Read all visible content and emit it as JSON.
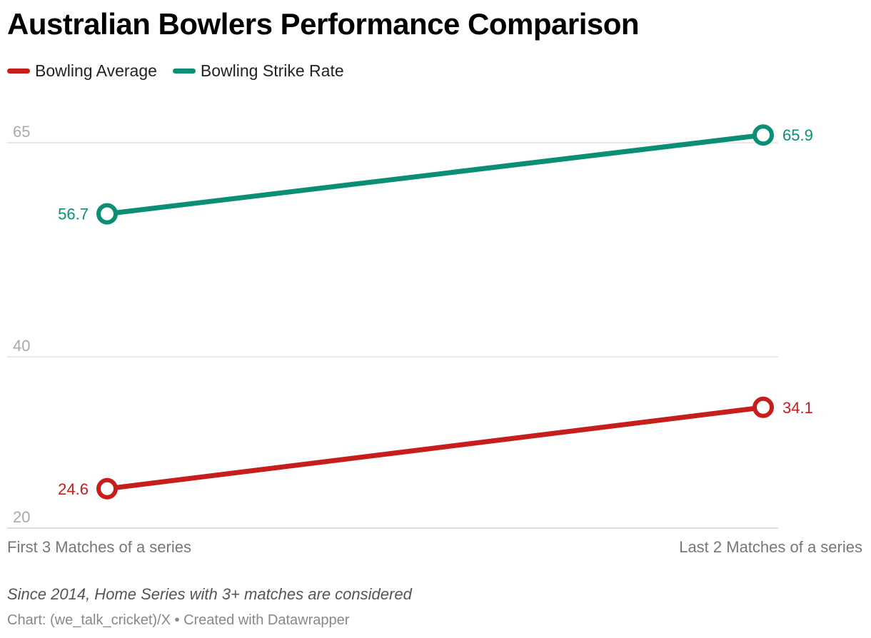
{
  "title": "Australian Bowlers Performance Comparison",
  "note": "Since 2014, Home Series with 3+ matches are considered",
  "source": "Chart: (we_talk_cricket)/X • Created with Datawrapper",
  "chart_data": {
    "type": "line",
    "title": "Australian Bowlers Performance Comparison",
    "x": [
      "First 3 Matches of a series",
      "Last 2 Matches of a series"
    ],
    "series": [
      {
        "name": "Bowling Average",
        "values": [
          24.6,
          34.1
        ],
        "color": "#c71e1d"
      },
      {
        "name": "Bowling Strike Rate",
        "values": [
          56.7,
          65.9
        ],
        "color": "#0b8f74"
      }
    ],
    "yticks": [
      20,
      40,
      65
    ],
    "ylim": [
      20,
      66
    ],
    "grid": true,
    "legend": "top-left"
  }
}
